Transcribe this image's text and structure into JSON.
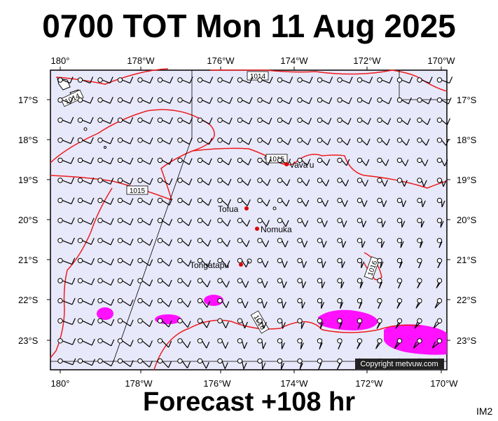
{
  "title": "0700 TOT Mon 11 Aug 2025",
  "footer": "Forecast +108 hr",
  "corner_label": "IM2",
  "copyright": "Copyright metvuw.com",
  "colors": {
    "ocean": "#e8e8fb",
    "isobar": "#ee1c1c",
    "high_wind": "#ff10ff",
    "place_marker": "#dd0000"
  },
  "longitude_labels": [
    "180°",
    "178°W",
    "176°W",
    "174°W",
    "172°W",
    "170°W"
  ],
  "latitude_labels": [
    "17°S",
    "18°S",
    "19°S",
    "20°S",
    "21°S",
    "22°S",
    "23°S"
  ],
  "places": [
    {
      "name": "Vava'u"
    },
    {
      "name": "Tofua"
    },
    {
      "name": "Nomuka"
    },
    {
      "name": "Tongatapu"
    }
  ],
  "isobar_labels": [
    "1014",
    "1014",
    "1015",
    "1015",
    "1016",
    "1016"
  ]
}
